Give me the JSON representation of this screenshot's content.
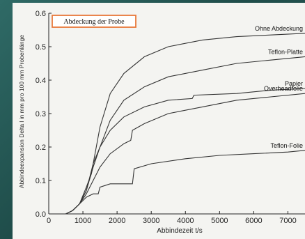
{
  "chart_data": {
    "type": "line",
    "title": "",
    "legend_title": "Abdeckung der Probe",
    "xlabel": "Abbindezeit t/s",
    "ylabel": "Abbindeexpansion Delta l in mm pro 100 mm Probenlänge",
    "xlim": [
      0,
      7500
    ],
    "ylim": [
      0,
      0.6
    ],
    "xticks": [
      0,
      1000,
      2000,
      3000,
      4000,
      5000,
      6000,
      7000
    ],
    "xtick_labels": [
      "0",
      "1000",
      "2000",
      "3000",
      "4000",
      "5000",
      "6000",
      "7000"
    ],
    "yticks": [
      0.0,
      0.1,
      0.2,
      0.3,
      0.4,
      0.5,
      0.6
    ],
    "ytick_labels": [
      "0.0",
      "0.1",
      "0.2",
      "0.3",
      "0.4",
      "0.5",
      "0.6"
    ],
    "grid": false,
    "series": [
      {
        "name": "Ohne Abdeckung",
        "x": [
          500,
          700,
          900,
          1100,
          1300,
          1500,
          1800,
          2200,
          2800,
          3500,
          4500,
          5500,
          6500,
          7500
        ],
        "y": [
          0.0,
          0.01,
          0.03,
          0.07,
          0.15,
          0.26,
          0.36,
          0.42,
          0.47,
          0.5,
          0.52,
          0.53,
          0.535,
          0.54
        ]
      },
      {
        "name": "Teflon-Platte",
        "x": [
          500,
          700,
          900,
          1100,
          1300,
          1500,
          1800,
          2200,
          2800,
          3500,
          4500,
          5500,
          6500,
          7500
        ],
        "y": [
          0.0,
          0.01,
          0.03,
          0.07,
          0.14,
          0.2,
          0.28,
          0.34,
          0.38,
          0.41,
          0.43,
          0.45,
          0.46,
          0.47
        ]
      },
      {
        "name": "Papier",
        "x": [
          500,
          700,
          900,
          1100,
          1250,
          1300,
          1500,
          1800,
          2200,
          2800,
          3500,
          4200,
          4250,
          5500,
          6500,
          7500
        ],
        "y": [
          0.0,
          0.01,
          0.03,
          0.08,
          0.12,
          0.15,
          0.2,
          0.25,
          0.29,
          0.32,
          0.34,
          0.345,
          0.355,
          0.36,
          0.37,
          0.375
        ]
      },
      {
        "name": "Overheadfolie",
        "x": [
          500,
          700,
          900,
          1100,
          1300,
          1500,
          1800,
          2200,
          2400,
          2450,
          2800,
          3500,
          4500,
          5500,
          6500,
          7500
        ],
        "y": [
          0.0,
          0.01,
          0.03,
          0.06,
          0.1,
          0.14,
          0.18,
          0.21,
          0.22,
          0.25,
          0.27,
          0.3,
          0.32,
          0.34,
          0.35,
          0.36
        ]
      },
      {
        "name": "Teflon-Folie",
        "x": [
          500,
          700,
          900,
          1100,
          1300,
          1450,
          1500,
          1800,
          2200,
          2450,
          2500,
          3000,
          4000,
          5000,
          6000,
          7000,
          7500
        ],
        "y": [
          0.0,
          0.01,
          0.03,
          0.05,
          0.06,
          0.06,
          0.08,
          0.09,
          0.09,
          0.09,
          0.135,
          0.15,
          0.165,
          0.175,
          0.18,
          0.185,
          0.19
        ]
      }
    ]
  }
}
